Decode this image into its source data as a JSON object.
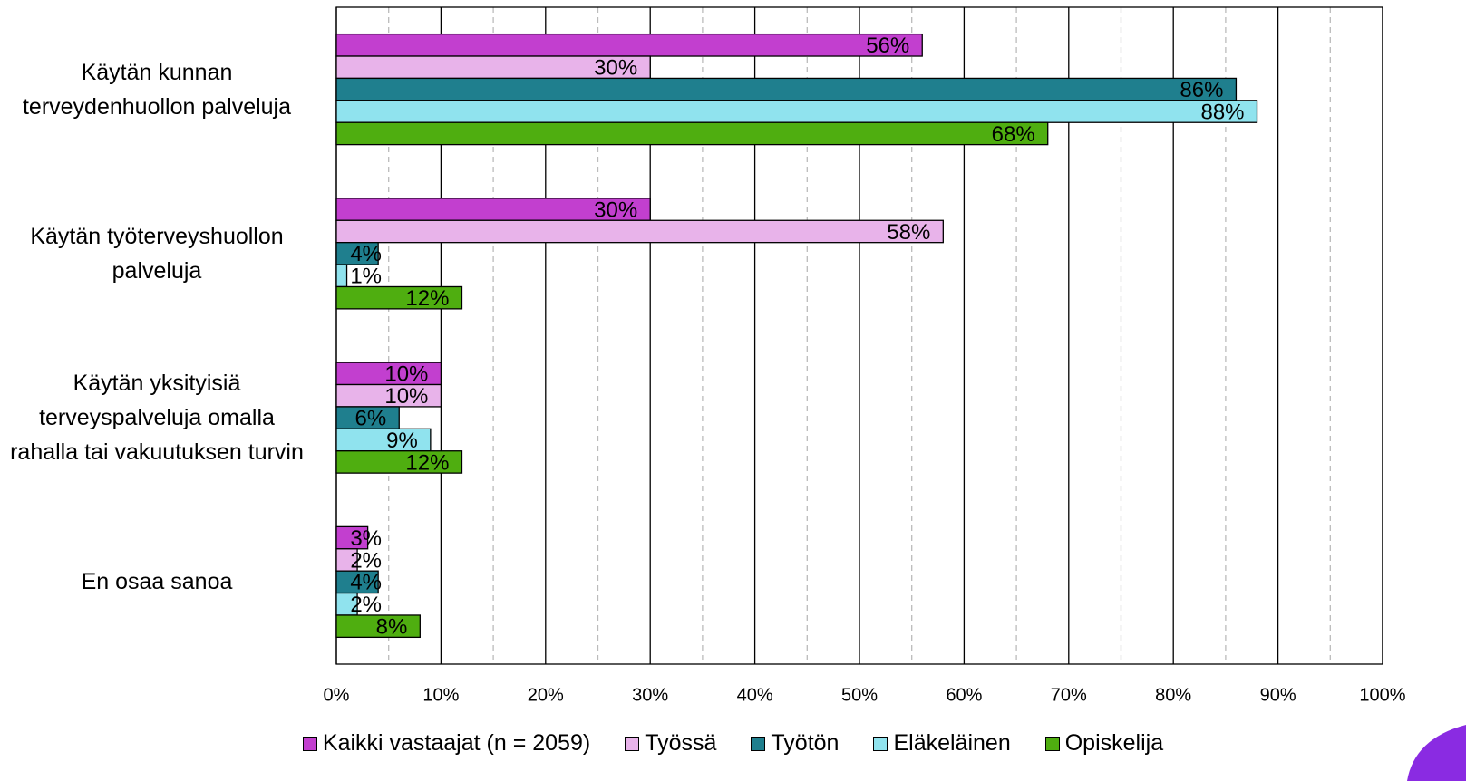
{
  "chart_data": {
    "type": "bar",
    "orientation": "horizontal",
    "categories": [
      "Käytän kunnan terveydenhuollon palveluja",
      "Käytän työterveyshuollon palveluja",
      "Käytän yksityisiä terveyspalveluja omalla rahalla tai vakuutuksen turvin",
      "En osaa sanoa"
    ],
    "series": [
      {
        "name": "Kaikki vastaajat (n = 2059)",
        "color": "#c23fcf",
        "values": [
          56,
          30,
          10,
          3
        ],
        "value_labels": [
          "56%",
          "30%",
          "10%",
          "3%"
        ]
      },
      {
        "name": "Työssä",
        "color": "#e8b3ea",
        "values": [
          30,
          58,
          10,
          2
        ],
        "value_labels": [
          "30%",
          "58%",
          "10%",
          "2%"
        ]
      },
      {
        "name": "Työtön",
        "color": "#1f7f8e",
        "values": [
          86,
          4,
          6,
          4
        ],
        "value_labels": [
          "86%",
          "4%",
          "6%",
          "4%"
        ]
      },
      {
        "name": "Eläkeläinen",
        "color": "#90e3ee",
        "values": [
          88,
          1,
          9,
          2
        ],
        "value_labels": [
          "88%",
          "1%",
          "9%",
          "2%"
        ]
      },
      {
        "name": "Opiskelija",
        "color": "#4fae10",
        "values": [
          68,
          12,
          12,
          8
        ],
        "value_labels": [
          "68%",
          "12%",
          "12%",
          "8%"
        ]
      }
    ],
    "xlim": [
      0,
      100
    ],
    "xticks": [
      {
        "value": 0,
        "label": "0%"
      },
      {
        "value": 10,
        "label": "10%"
      },
      {
        "value": 20,
        "label": "20%"
      },
      {
        "value": 30,
        "label": "30%"
      },
      {
        "value": 40,
        "label": "40%"
      },
      {
        "value": 50,
        "label": "50%"
      },
      {
        "value": 60,
        "label": "60%"
      },
      {
        "value": 70,
        "label": "70%"
      },
      {
        "value": 80,
        "label": "80%"
      },
      {
        "value": 90,
        "label": "90%"
      },
      {
        "value": 100,
        "label": "100%"
      }
    ],
    "xticks_minor": [
      5,
      15,
      25,
      35,
      45,
      55,
      65,
      75,
      85,
      95
    ],
    "grid": true,
    "legend": "bottom"
  }
}
